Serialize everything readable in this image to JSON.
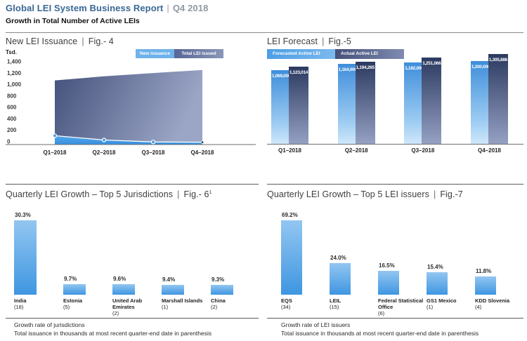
{
  "header": {
    "title": "Global LEI System Business Report",
    "separator": "|",
    "period": "Q4 2018",
    "subtitle": "Growth in Total Number of Active LEIs"
  },
  "colors": {
    "header_blue": "#3A6795",
    "period_gray": "#9098A3",
    "panel_title_gray": "#3E3E3D",
    "light_blue": "#4BA1E5",
    "bar_gradient_top": "#93C6F1",
    "bar_gradient_bottom": "#3E96E1",
    "forecast_bar_top": "#3F8EDB",
    "forecast_bar_bottom": "#CFE7FA",
    "actual_bar_top": "#2C3A60",
    "actual_bar_bottom": "#95A1C3",
    "area_dark_left": "#44517B",
    "area_dark_right": "#9BA6C6",
    "axis_gray": "#6D6E70"
  },
  "chart_data": [
    {
      "id": "fig4",
      "type": "area",
      "title": "New LEI Issuance",
      "sep": "|",
      "fig_label": "Fig.- 4",
      "unit": "Tsd.",
      "categories": [
        "Q1–2018",
        "Q2–2018",
        "Q3–2018",
        "Q4–2018"
      ],
      "series": [
        {
          "name": "New issuance",
          "values": [
            155,
            80,
            45,
            40
          ]
        },
        {
          "name": "Total LEI issued",
          "values": [
            1123,
            1194,
            1251,
            1306
          ]
        }
      ],
      "ylim": [
        0,
        1400
      ],
      "ytick_step": 200,
      "ytick_labels": [
        "0",
        "200",
        "400",
        "600",
        "800",
        "1,000",
        "1,200",
        "1,400"
      ],
      "legend_position": "top-right",
      "grid": false
    },
    {
      "id": "fig5",
      "type": "bar",
      "title": "LEI Forecast",
      "sep": "|",
      "fig_label": "Fig.-5",
      "categories": [
        "Q1–2018",
        "Q2–2018",
        "Q3–2018",
        "Q4–2018"
      ],
      "series": [
        {
          "name": "Forecasted Active LEI",
          "values": [
            1069000,
            1164000,
            1182000,
            1200000
          ],
          "labels": [
            "1,069,000",
            "1,164,000",
            "1,182,000",
            "1,200,000"
          ]
        },
        {
          "name": "Actual Active LEI",
          "values": [
            1123014,
            1194265,
            1251066,
            1305886
          ],
          "labels": [
            "1,123,014",
            "1,194,265",
            "1,251,066",
            "1,305,886"
          ]
        }
      ],
      "legend_position": "top-left",
      "grid": false
    },
    {
      "id": "fig6",
      "type": "bar",
      "title": "Quarterly LEI Growth – Top 5 Jurisdictions",
      "sep": "|",
      "fig_label": "Fig.- 6",
      "fig_superscript": "1",
      "categories": [
        "India",
        "Estonia",
        "United Arab Emirates",
        "Marshall Islands",
        "China"
      ],
      "values": [
        30.3,
        9.7,
        9.6,
        9.4,
        9.3
      ],
      "value_labels": [
        "30.3%",
        "9.7%",
        "9.6%",
        "9.4%",
        "9.3%"
      ],
      "totals": [
        "(18)",
        "(5)",
        "(2)",
        "(1)",
        "(2)"
      ],
      "footnotes": [
        "Growth rate of jurisdictions",
        "Total issuance in thousands at most recent quarter-end date in parenthesis"
      ],
      "bar_scale_exponent": 1.7,
      "grid": false
    },
    {
      "id": "fig7",
      "type": "bar",
      "title": "Quarterly LEI Growth – Top 5 LEI issuers",
      "sep": "|",
      "fig_label": "Fig.-7",
      "categories": [
        "EQS",
        "LEIL",
        "Federal Statistical Office",
        "GS1 Mexico",
        "KDD Slovenia"
      ],
      "values": [
        69.2,
        24.0,
        16.5,
        15.4,
        11.8
      ],
      "value_labels": [
        "69.2%",
        "24.0%",
        "16.5%",
        "15.4%",
        "11.8%"
      ],
      "totals": [
        "(34)",
        "(15)",
        "(6)",
        "(1)",
        "(4)"
      ],
      "footnotes": [
        "Growth rate of LEI issuers",
        "Total issuance in thousands at most recent quarter-end date in parenthesis"
      ],
      "bar_scale_exponent": 0.8,
      "grid": false
    }
  ]
}
